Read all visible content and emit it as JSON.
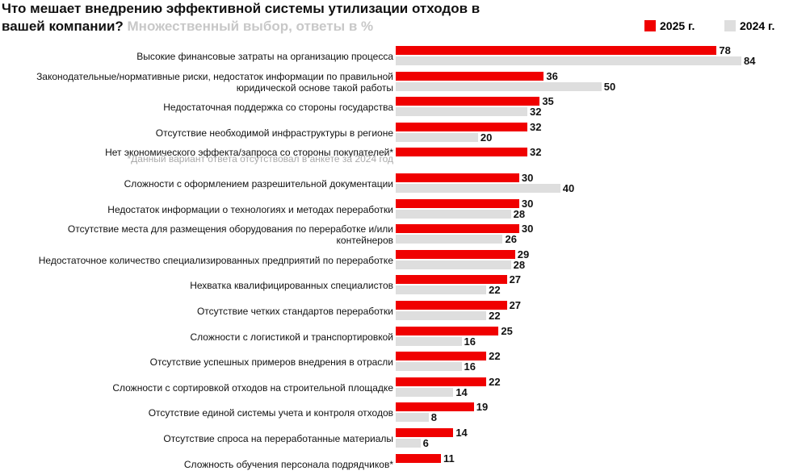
{
  "chart_data": {
    "type": "bar",
    "orientation": "horizontal",
    "title": "Что мешает внедрению эффективной системы утилизации отходов в вашей компании?",
    "subtitle": "Множественный выбор, ответы в %",
    "note": "*Данный вариант ответа отсутствовал в анкете за 2024 год",
    "categories": [
      "Высокие финансовые затраты на организацию процесса",
      "Законодательные/нормативные риски, недостаток информации по правильной\nюридической основе такой работы",
      "Недостаточная поддержка со стороны государства",
      "Отсутствие необходимой инфраструктуры в регионе",
      "Нет экономического эффекта/запроса со стороны покупателей*",
      "Сложности с оформлением разрешительной документации",
      "Недостаток информации о технологиях и методах переработки",
      "Отсутствие места для размещения оборудования по переработке и/или\nконтейнеров",
      "Недостаточное количество специализированных предприятий по переработке",
      "Нехватка квалифицированных специалистов",
      "Отсутствие четких стандартов переработки",
      "Сложности с логистикой и транспортировкой",
      "Отсутствие успешных примеров внедрения в отрасли",
      "Сложности с сортировкой отходов на строительной площадке",
      "Отсутствие единой системы учета и контроля отходов",
      "Отсутствие спроса на переработанные материалы",
      "Сложность обучения персонала подрядчиков*"
    ],
    "series": [
      {
        "name": "2025 г.",
        "color": "#f00000",
        "values": [
          78,
          36,
          35,
          32,
          32,
          30,
          30,
          30,
          29,
          27,
          27,
          25,
          22,
          22,
          19,
          14,
          11
        ]
      },
      {
        "name": "2024 г.",
        "color": "#dedede",
        "values": [
          84,
          50,
          32,
          20,
          null,
          40,
          28,
          26,
          28,
          22,
          22,
          16,
          16,
          14,
          8,
          6,
          null
        ]
      }
    ],
    "legend": "top-right"
  }
}
